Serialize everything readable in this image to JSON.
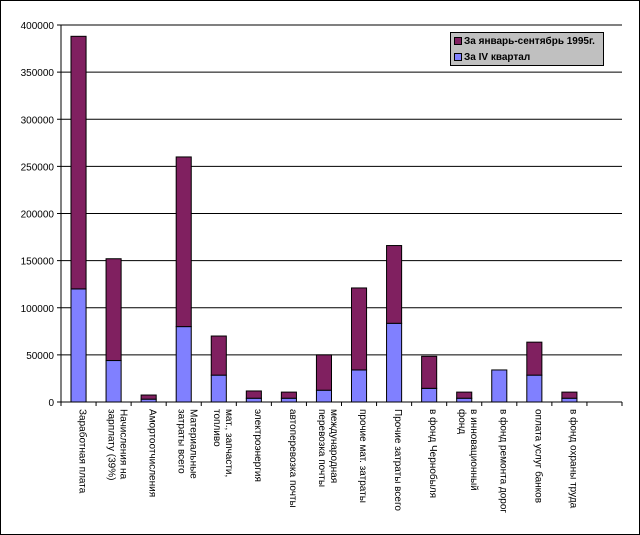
{
  "chart_data": {
    "type": "bar",
    "stacked": true,
    "title": "",
    "xlabel": "",
    "ylabel": "",
    "ylim": [
      0,
      400000
    ],
    "yticks": [
      0,
      50000,
      100000,
      150000,
      200000,
      250000,
      300000,
      350000,
      400000
    ],
    "grid": true,
    "legend_position": "top-right",
    "categories": [
      "Заработная плата",
      "Начисления на\nзарплату (39%)",
      "Амортоотчисления",
      "Материальные\nзатраты всего",
      "мат., запчасти,\nтопливо",
      "электроэнергия",
      "автоперевозка почты",
      "международная\nперевозка почты",
      "прочие мат. затраты",
      "Прочие затраты всего",
      "в фонд Чернобыля",
      "в инновационный\nфонд",
      "в фонд ремонта дорог",
      "оплата услуг банков",
      "в фонд охраны труда",
      ""
    ],
    "series": [
      {
        "name": "За IV квартал",
        "color": "#8080ff",
        "values": [
          120000,
          44000,
          3000,
          80000,
          28500,
          4000,
          4000,
          12500,
          34000,
          83500,
          14500,
          4000,
          34000,
          28500,
          4000,
          0
        ]
      },
      {
        "name": "За январь-сентябрь 1995г.",
        "color": "#802060",
        "values": [
          268000,
          108000,
          4400,
          180000,
          41500,
          7700,
          6500,
          37500,
          87000,
          82500,
          34000,
          6500,
          0,
          35000,
          6500,
          0
        ]
      }
    ]
  }
}
